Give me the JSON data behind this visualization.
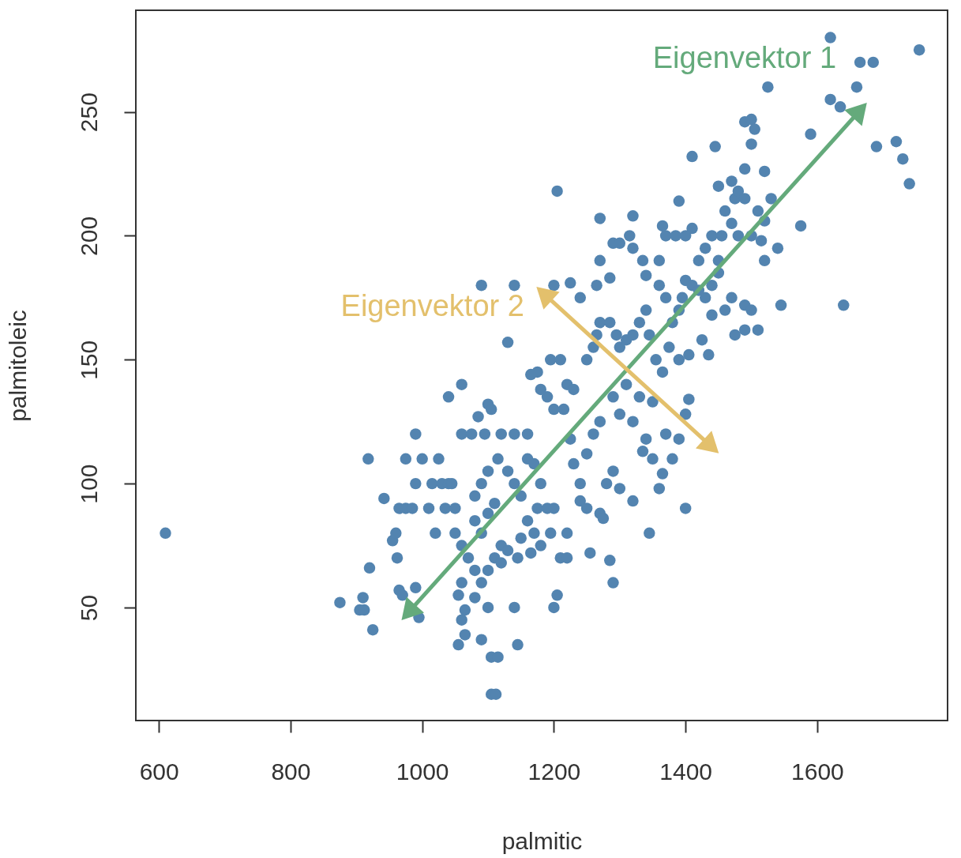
{
  "chart_data": {
    "type": "scatter",
    "xlabel": "palmitic",
    "ylabel": "palmitoleic",
    "xlim": [
      565,
      1798
    ],
    "ylim": [
      4.4,
      291
    ],
    "xticks": [
      600,
      800,
      1000,
      1200,
      1400,
      1600
    ],
    "yticks": [
      50,
      100,
      150,
      200,
      250
    ],
    "grid": false,
    "series": [
      {
        "marker": "circle",
        "color": "#5384b0",
        "x": [
          610,
          875,
          905,
          912,
          910,
          925,
          920,
          918,
          942,
          955,
          960,
          962,
          965,
          970,
          965,
          975,
          985,
          990,
          990,
          995,
          990,
          975,
          1000,
          1010,
          1015,
          1020,
          1025,
          1030,
          1040,
          1045,
          1035,
          1050,
          1040,
          1060,
          1060,
          1075,
          1085,
          1100,
          1095,
          1105,
          1120,
          1140,
          1160,
          1050,
          1060,
          1070,
          1080,
          1060,
          1055,
          1065,
          1060,
          1065,
          1055,
          1080,
          1090,
          1090,
          1100,
          1105,
          1115,
          1105,
          1112,
          1145,
          1140,
          1100,
          1110,
          1120,
          1090,
          1080,
          1100,
          1110,
          1080,
          1090,
          1100,
          1115,
          1130,
          1140,
          1150,
          1160,
          1170,
          1180,
          1175,
          1190,
          1200,
          1160,
          1150,
          1165,
          1145,
          1130,
          1120,
          1170,
          1180,
          1195,
          1205,
          1200,
          1210,
          1220,
          1220,
          1230,
          1240,
          1250,
          1255,
          1270,
          1275,
          1285,
          1290,
          1280,
          1290,
          1300,
          1320,
          1345,
          1360,
          1400,
          1350,
          1365,
          1380,
          1390,
          1400,
          1405,
          1370,
          1340,
          1335,
          1320,
          1300,
          1290,
          1310,
          1330,
          1350,
          1260,
          1270,
          1250,
          1240,
          1225,
          1215,
          1200,
          1190,
          1180,
          1175,
          1165,
          1195,
          1210,
          1220,
          1230,
          1250,
          1260,
          1265,
          1270,
          1285,
          1295,
          1300,
          1310,
          1320,
          1330,
          1340,
          1345,
          1355,
          1365,
          1375,
          1380,
          1390,
          1395,
          1400,
          1410,
          1420,
          1430,
          1440,
          1450,
          1460,
          1470,
          1475,
          1490,
          1510,
          1490,
          1500,
          1545,
          1640,
          1390,
          1405,
          1425,
          1435,
          1440,
          1200,
          1090,
          1140,
          1130,
          1225,
          1240,
          1265,
          1270,
          1285,
          1290,
          1300,
          1315,
          1320,
          1335,
          1340,
          1360,
          1370,
          1360,
          1370,
          1365,
          1385,
          1390,
          1400,
          1410,
          1420,
          1430,
          1440,
          1450,
          1455,
          1460,
          1470,
          1475,
          1480,
          1490,
          1480,
          1500,
          1510,
          1520,
          1530,
          1515,
          1520,
          1540,
          1575,
          1410,
          1445,
          1450,
          1470,
          1490,
          1500,
          1490,
          1500,
          1505,
          1520,
          1525,
          1205,
          1270,
          1320,
          1590,
          1620,
          1620,
          1635,
          1660,
          1665,
          1685,
          1690,
          1720,
          1730,
          1740,
          1755
        ],
        "values": [
          80,
          52,
          49,
          49,
          54,
          41,
          66,
          110,
          94,
          77,
          80,
          70,
          57,
          55,
          90,
          90,
          90,
          120,
          100,
          46,
          58,
          110,
          110,
          90,
          100,
          80,
          110,
          100,
          100,
          100,
          90,
          90,
          135,
          140,
          120,
          120,
          127,
          132,
          120,
          130,
          120,
          120,
          120,
          80,
          75,
          70,
          65,
          60,
          55,
          49,
          45,
          39,
          35,
          54,
          60,
          37,
          50,
          30,
          30,
          15,
          15,
          35,
          50,
          65,
          70,
          75,
          80,
          85,
          88,
          92,
          95,
          100,
          105,
          110,
          105,
          100,
          95,
          110,
          108,
          100,
          90,
          90,
          90,
          85,
          78,
          72,
          70,
          73,
          68,
          80,
          75,
          80,
          55,
          50,
          70,
          70,
          80,
          108,
          93,
          90,
          72,
          88,
          86,
          69,
          60,
          100,
          105,
          98,
          93,
          80,
          98,
          90,
          110,
          104,
          110,
          118,
          128,
          134,
          120,
          118,
          113,
          125,
          128,
          135,
          140,
          135,
          133,
          120,
          125,
          112,
          100,
          118,
          130,
          130,
          135,
          138,
          145,
          144,
          150,
          150,
          140,
          138,
          150,
          155,
          160,
          165,
          165,
          160,
          155,
          158,
          160,
          165,
          170,
          160,
          150,
          145,
          155,
          165,
          170,
          175,
          182,
          180,
          178,
          175,
          180,
          185,
          170,
          175,
          160,
          162,
          162,
          172,
          170,
          172,
          172,
          150,
          152,
          158,
          152,
          168,
          180,
          180,
          180,
          157,
          181,
          175,
          180,
          190,
          183,
          197,
          197,
          200,
          195,
          190,
          184,
          180,
          175,
          190,
          200,
          204,
          200,
          214,
          200,
          203,
          190,
          195,
          200,
          190,
          200,
          210,
          205,
          215,
          218,
          215,
          200,
          200,
          210,
          206,
          215,
          198,
          190,
          195,
          204,
          232,
          236,
          220,
          222,
          227,
          237,
          246,
          247,
          243,
          226,
          260,
          218,
          207,
          208,
          241,
          255,
          280,
          252,
          260,
          270,
          270,
          236,
          238,
          231,
          221,
          275
        ]
      },
      {
        "type": "line",
        "marker": "triangle",
        "name": "Eigenvektor 1",
        "color": "#64aa7b",
        "x": [
          979,
          1665
        ],
        "values": [
          48,
          250.6
        ]
      },
      {
        "type": "line",
        "marker": "triangle",
        "name": "Eigenvektor 2",
        "color": "#e3c06c",
        "x": [
          1185,
          1439
        ],
        "values": [
          176.6,
          115
        ]
      }
    ]
  }
}
